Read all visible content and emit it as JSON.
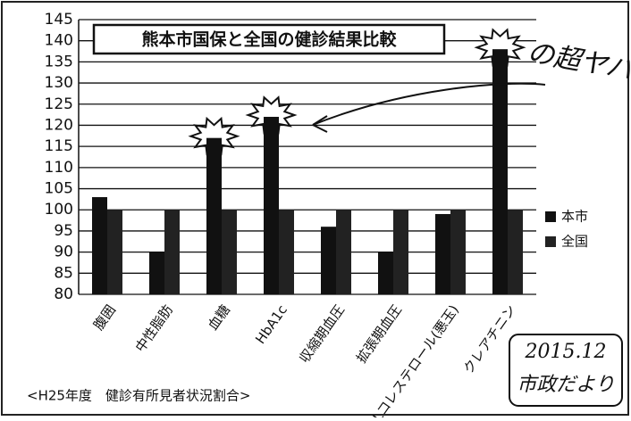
{
  "chart_data": {
    "type": "bar",
    "title": "熊本市国保と全国の健診結果比較",
    "categories": [
      "腹囲",
      "中性脂肪",
      "血糖",
      "HbA1c",
      "収縮期血圧",
      "拡張期血圧",
      "LDLコレステロール(悪玉)",
      "クレアチニン"
    ],
    "series": [
      {
        "name": "本市",
        "color": "#111111",
        "values": [
          103,
          90,
          117,
          122,
          96,
          90,
          99,
          138
        ]
      },
      {
        "name": "全国",
        "color": "#222222",
        "values": [
          100,
          100,
          100,
          100,
          100,
          100,
          100,
          100
        ]
      }
    ],
    "ylim": [
      80,
      145
    ],
    "yticks": [
      80,
      85,
      90,
      95,
      100,
      105,
      110,
      115,
      120,
      125,
      130,
      135,
      140,
      145
    ],
    "grid": true,
    "legend": "right",
    "footnote": "<H25年度　健診有所見者状況割合>",
    "handwritten_note": "の超ヤバイ!",
    "stamp_date": "2015.12",
    "stamp_text": "市政だより"
  }
}
